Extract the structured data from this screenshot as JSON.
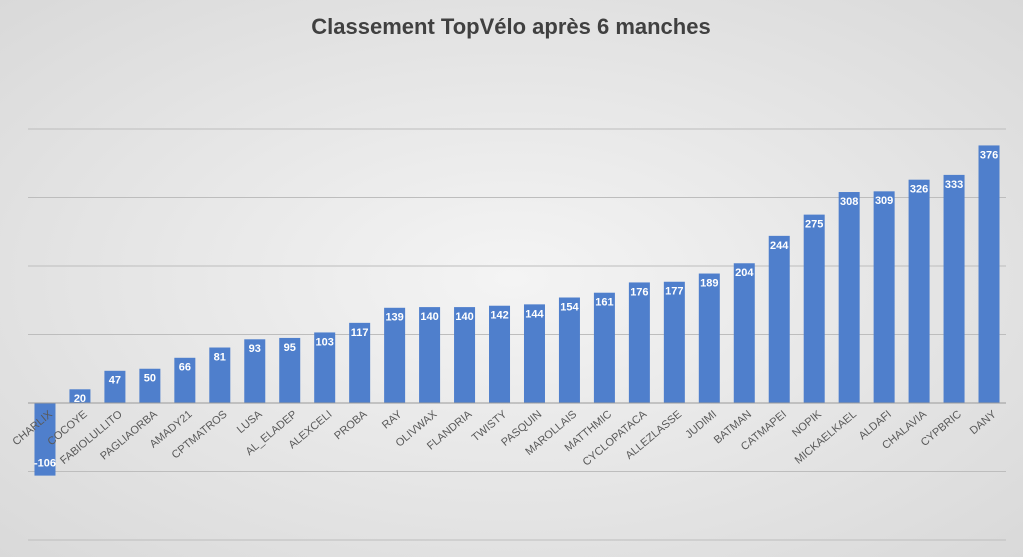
{
  "chart_data": {
    "type": "bar",
    "title": "Classement TopVélo après 6 manches",
    "categories": [
      "CHARLIX",
      "COCOYE",
      "FABIOLULLITO",
      "PAGLIAORBA",
      "AMADY21",
      "CPTMATROS",
      "LUSA",
      "AL_ELADEP",
      "ALEXCELI",
      "PROBA",
      "RAY",
      "OLIVWAX",
      "FLANDRIA",
      "TWISTY",
      "PASQUIN",
      "MAROLLAIS",
      "MATTHMIC",
      "CYCLOPATACA",
      "ALLEZLASSE",
      "JUDIMI",
      "BATMAN",
      "CATMAPEI",
      "NOPIK",
      "MICKAELKAEL",
      "ALDAFI",
      "CHALAVIA",
      "CYPBRIC",
      "DANY"
    ],
    "values": [
      -106,
      20,
      47,
      50,
      66,
      81,
      93,
      95,
      103,
      117,
      139,
      140,
      140,
      142,
      144,
      154,
      161,
      176,
      177,
      189,
      204,
      244,
      275,
      308,
      309,
      326,
      333,
      376
    ],
    "color": "#4f7fcc",
    "ylim": [
      -200,
      400
    ],
    "yticks": [
      -200,
      -100,
      0,
      100,
      200,
      300,
      400
    ],
    "grid": true
  }
}
